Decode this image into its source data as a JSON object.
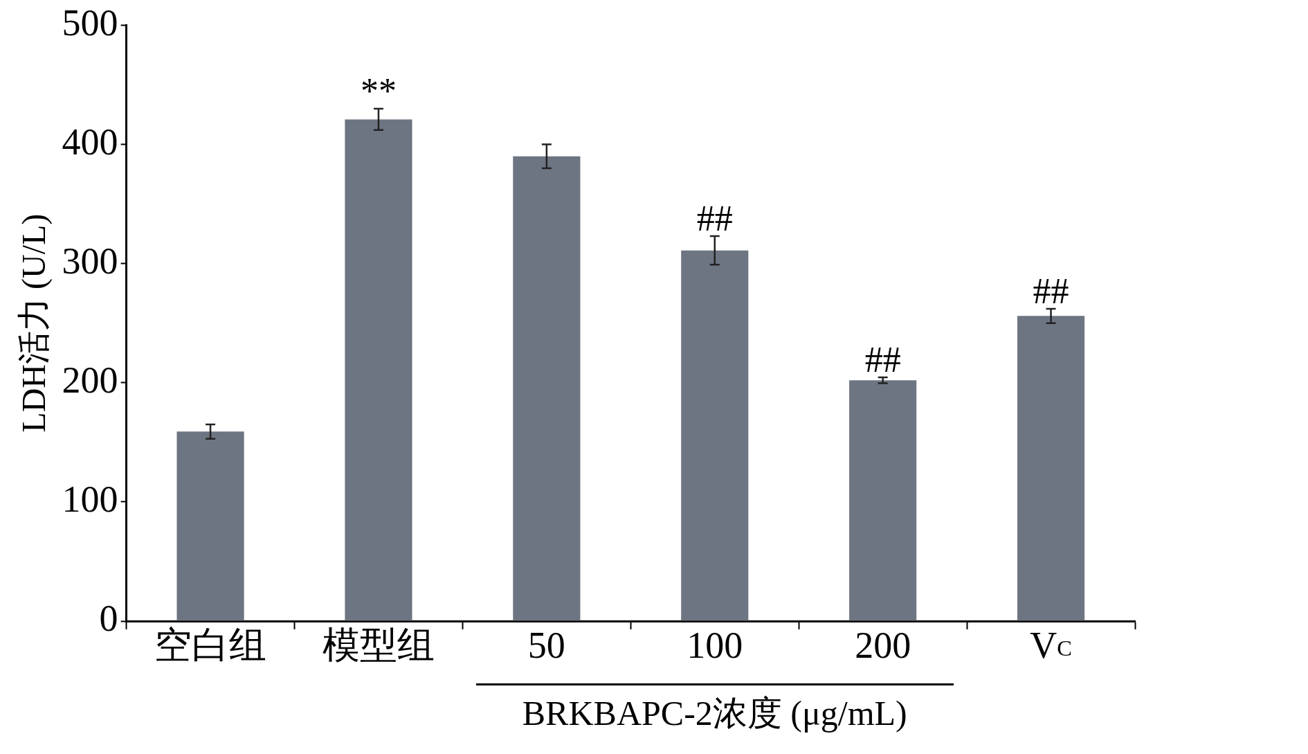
{
  "chart_data": {
    "type": "bar",
    "categories": [
      "空白组",
      "模型组",
      "50",
      "100",
      "200",
      "V$_{C}$"
    ],
    "values": [
      159,
      421,
      390,
      311,
      202,
      256
    ],
    "errors": [
      6,
      9,
      10,
      12,
      2.5,
      6
    ],
    "color": "#6e7582",
    "ylim": [
      0,
      500
    ],
    "yticks": [
      0,
      100,
      200,
      300,
      400,
      500
    ],
    "ylabel": "LDH活力 (U/L)",
    "xlabel": "BRKBAPC-2浓度 (μg/mL)",
    "annotations": [
      {
        "text": "**",
        "x": "模型组",
        "y": 430
      },
      {
        "text": "##",
        "x": "100",
        "y": 323
      },
      {
        "text": "##",
        "x": "200",
        "y": 204.5
      },
      {
        "text": "##",
        "x": "V$_{C}$",
        "y": 262
      }
    ],
    "grid": false,
    "legend": false
  }
}
